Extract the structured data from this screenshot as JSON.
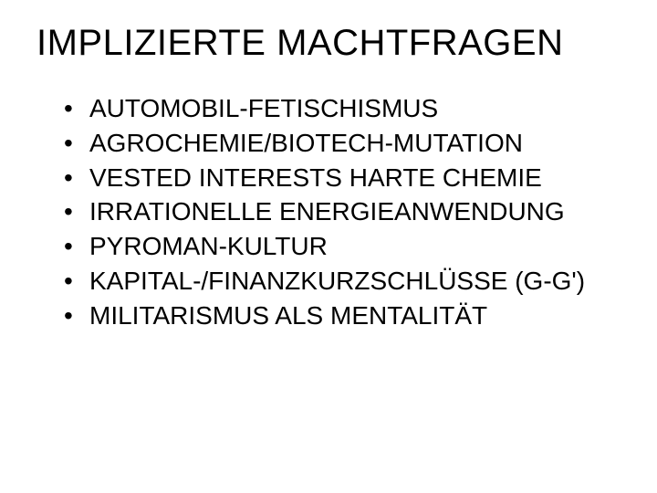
{
  "slide": {
    "title": "IMPLIZIERTE MACHTFRAGEN",
    "title_fontsize": 40,
    "title_color": "#000000",
    "background_color": "#ffffff",
    "bullet_fontsize": 28,
    "bullet_color": "#000000",
    "bullets": [
      "AUTOMOBIL-FETISCHISMUS",
      "AGROCHEMIE/BIOTECH-MUTATION",
      "VESTED INTERESTS HARTE CHEMIE",
      "IRRATIONELLE ENERGIEANWENDUNG",
      "PYROMAN-KULTUR",
      "KAPITAL-/FINANZKURZSCHLÜSSE (G-G')",
      "MILITARISMUS ALS MENTALITÄT"
    ]
  }
}
